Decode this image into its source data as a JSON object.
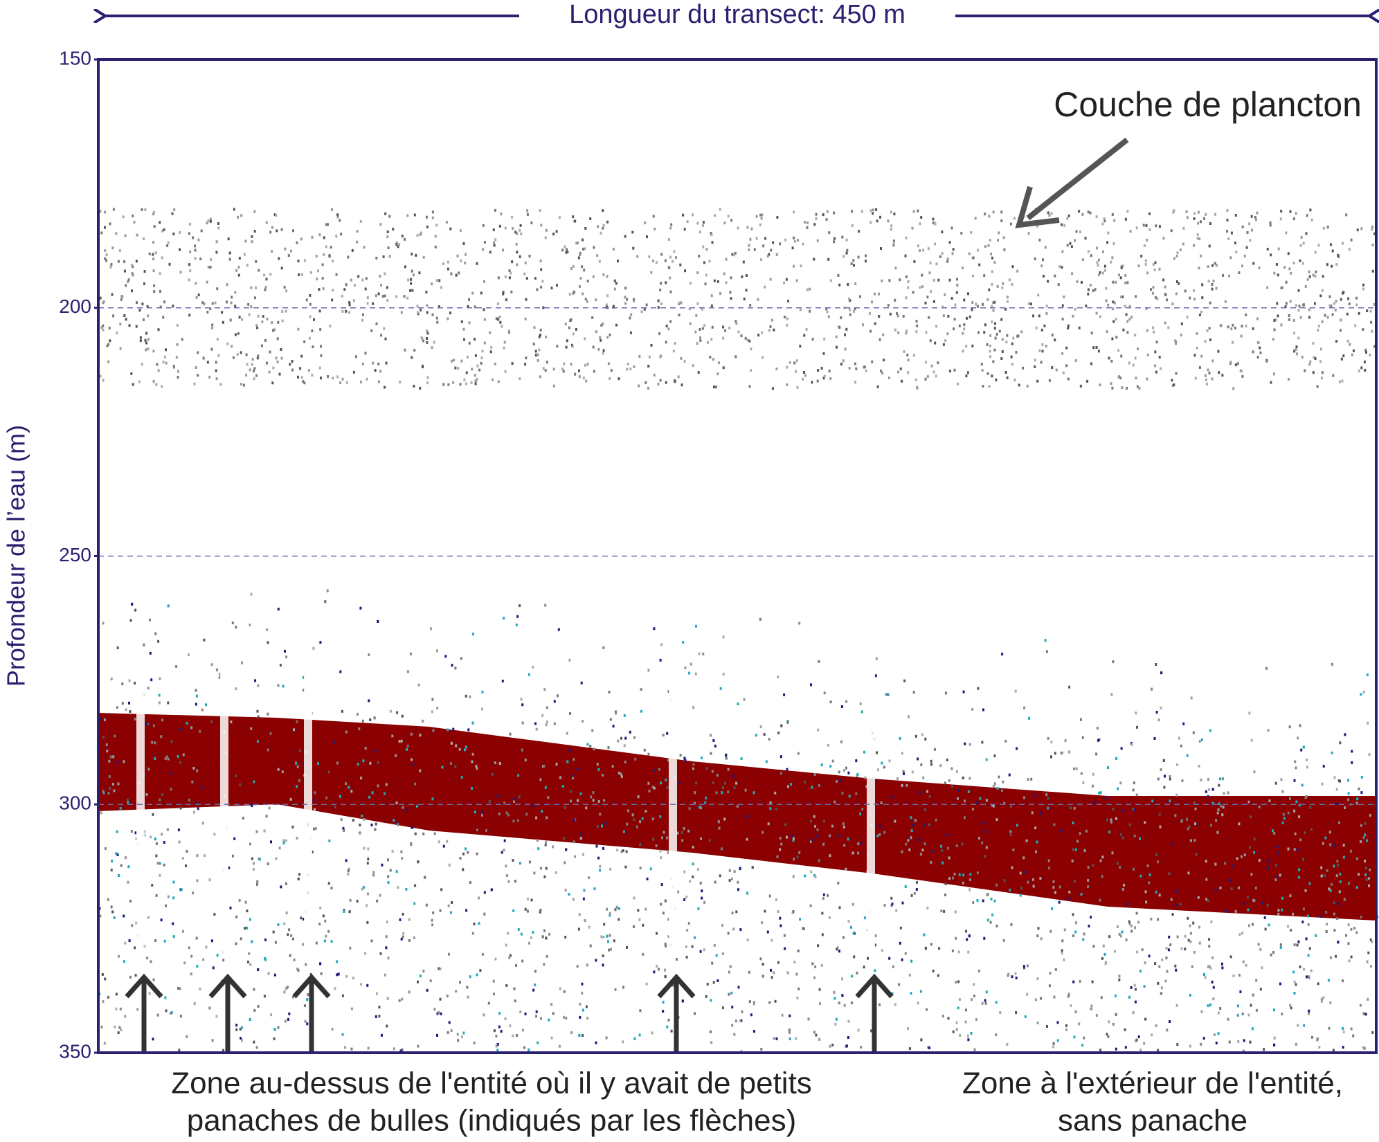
{
  "chart_data": {
    "type": "echogram",
    "title": "Longueur du transect: 450 m",
    "ylabel": "Profondeur de l’eau (m)",
    "ylim": [
      150,
      350
    ],
    "yticks": [
      150,
      200,
      250,
      300,
      350
    ],
    "y_inverted": true,
    "grid": true,
    "annotations": [
      "Couche de plancton",
      "Zone au-dessus de l'entité où il y avait de petits",
      "panaches de bulles (indiqués par les flèches)",
      "Zone à l'extérieur de l'entité,",
      "sans panache"
    ]
  }
}
